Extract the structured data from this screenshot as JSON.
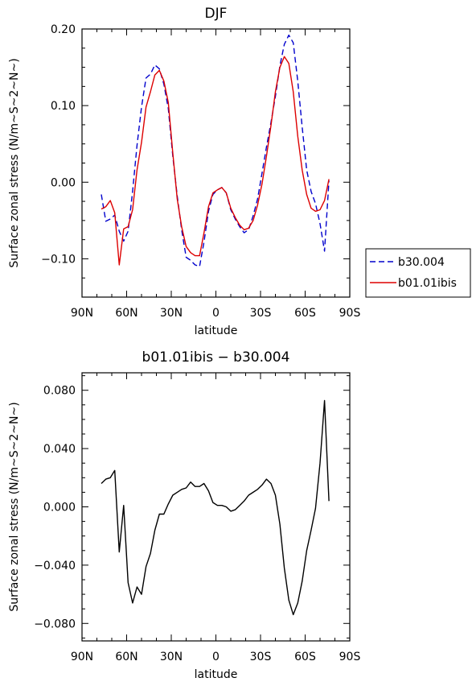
{
  "chart_data": [
    {
      "type": "line",
      "title": "DJF",
      "xlabel": "latitude",
      "ylabel": "Surface zonal stress (N/m~S~2~N~)",
      "xlim": [
        -90,
        90
      ],
      "ylim": [
        -0.15,
        0.2
      ],
      "xticks": [
        -90,
        -60,
        -30,
        0,
        30,
        60,
        90
      ],
      "xtick_labels": [
        "90N",
        "60N",
        "30N",
        "0",
        "30S",
        "60S",
        "90S"
      ],
      "yticks": [
        -0.1,
        0.0,
        0.1,
        0.2
      ],
      "ytick_labels": [
        "-0.10",
        "0.00",
        "0.10",
        "0.20"
      ],
      "grid": false,
      "legend_position": "right",
      "series": [
        {
          "name": "b30.004",
          "color": "#0000cc",
          "dash": "dashed",
          "x": [
            -77,
            -74,
            -71,
            -68,
            -65,
            -62,
            -59,
            -56,
            -53,
            -50,
            -47,
            -44,
            -41,
            -38,
            -35,
            -32,
            -29,
            -26,
            -23,
            -20,
            -17,
            -14,
            -11,
            -8,
            -5,
            -2,
            1,
            4,
            7,
            10,
            13,
            16,
            19,
            22,
            25,
            28,
            31,
            34,
            37,
            40,
            43,
            46,
            49,
            52,
            55,
            58,
            61,
            64,
            67,
            70,
            73,
            76
          ],
          "y": [
            -0.016,
            -0.051,
            -0.048,
            -0.043,
            -0.064,
            -0.077,
            -0.064,
            -0.012,
            0.048,
            0.098,
            0.136,
            0.141,
            0.153,
            0.148,
            0.128,
            0.096,
            0.034,
            -0.018,
            -0.062,
            -0.098,
            -0.102,
            -0.108,
            -0.11,
            -0.078,
            -0.038,
            -0.016,
            -0.01,
            -0.007,
            -0.014,
            -0.036,
            -0.048,
            -0.058,
            -0.066,
            -0.062,
            -0.044,
            -0.022,
            0.012,
            0.046,
            0.078,
            0.112,
            0.152,
            0.18,
            0.192,
            0.182,
            0.132,
            0.072,
            0.016,
            -0.012,
            -0.028,
            -0.054,
            -0.09,
            0.002
          ]
        },
        {
          "name": "b01.01ibis",
          "color": "#dd0000",
          "dash": "solid",
          "x": [
            -77,
            -74,
            -71,
            -68,
            -65,
            -62,
            -59,
            -56,
            -53,
            -50,
            -47,
            -44,
            -41,
            -38,
            -35,
            -32,
            -29,
            -26,
            -23,
            -20,
            -17,
            -14,
            -11,
            -8,
            -5,
            -2,
            1,
            4,
            7,
            10,
            13,
            16,
            19,
            22,
            25,
            28,
            31,
            34,
            37,
            40,
            43,
            46,
            49,
            52,
            55,
            58,
            61,
            64,
            67,
            70,
            73,
            76
          ],
          "y": [
            -0.035,
            -0.032,
            -0.024,
            -0.04,
            -0.108,
            -0.061,
            -0.058,
            -0.036,
            0.016,
            0.052,
            0.098,
            0.118,
            0.14,
            0.146,
            0.132,
            0.104,
            0.038,
            -0.022,
            -0.058,
            -0.084,
            -0.092,
            -0.096,
            -0.096,
            -0.066,
            -0.032,
            -0.014,
            -0.01,
            -0.007,
            -0.014,
            -0.034,
            -0.046,
            -0.056,
            -0.062,
            -0.06,
            -0.05,
            -0.03,
            -0.002,
            0.034,
            0.074,
            0.118,
            0.15,
            0.164,
            0.155,
            0.118,
            0.06,
            0.016,
            -0.016,
            -0.034,
            -0.038,
            -0.036,
            -0.024,
            0.004
          ]
        }
      ]
    },
    {
      "type": "line",
      "title": "b01.01ibis - b30.004",
      "xlabel": "latitude",
      "ylabel": "Surface zonal stress (N/m~S~2~N~)",
      "xlim": [
        -90,
        90
      ],
      "ylim": [
        -0.092,
        0.092
      ],
      "xticks": [
        -90,
        -60,
        -30,
        0,
        30,
        60,
        90
      ],
      "xtick_labels": [
        "90N",
        "60N",
        "30N",
        "0",
        "30S",
        "60S",
        "90S"
      ],
      "yticks": [
        -0.08,
        -0.04,
        0.0,
        0.04,
        0.08
      ],
      "ytick_labels": [
        "-0.080",
        "-0.040",
        "0.000",
        "0.040",
        "0.080"
      ],
      "grid": false,
      "series": [
        {
          "color": "#000000",
          "dash": "solid",
          "x": [
            -77,
            -74,
            -71,
            -68,
            -65,
            -62,
            -59,
            -56,
            -53,
            -50,
            -47,
            -44,
            -41,
            -38,
            -35,
            -32,
            -29,
            -26,
            -23,
            -20,
            -17,
            -14,
            -11,
            -8,
            -5,
            -2,
            1,
            4,
            7,
            10,
            13,
            16,
            19,
            22,
            25,
            28,
            31,
            34,
            37,
            40,
            43,
            46,
            49,
            52,
            55,
            58,
            61,
            64,
            67,
            70,
            73,
            76
          ],
          "y": [
            0.016,
            0.019,
            0.02,
            0.025,
            -0.031,
            0.001,
            -0.052,
            -0.066,
            -0.055,
            -0.06,
            -0.041,
            -0.032,
            -0.016,
            -0.005,
            -0.005,
            0.002,
            0.008,
            0.01,
            0.012,
            0.013,
            0.017,
            0.014,
            0.014,
            0.016,
            0.011,
            0.003,
            0.001,
            0.001,
            0.0,
            -0.003,
            -0.002,
            0.001,
            0.004,
            0.008,
            0.01,
            0.012,
            0.015,
            0.019,
            0.016,
            0.008,
            -0.012,
            -0.042,
            -0.064,
            -0.074,
            -0.066,
            -0.051,
            -0.03,
            -0.016,
            -0.001,
            0.03,
            0.073,
            0.004
          ]
        }
      ]
    }
  ]
}
